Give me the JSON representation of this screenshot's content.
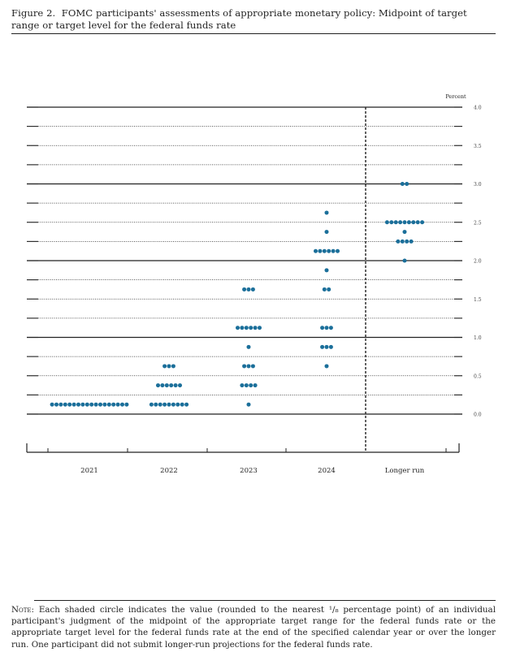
{
  "figure": {
    "caption_label": "Figure 2.",
    "caption_text": "FOMC participants' assessments of appropriate monetary policy: Midpoint of target range or target level for the federal funds rate"
  },
  "note": {
    "label": "Note:",
    "text": "Each shaded circle indicates the value (rounded to the nearest ¹/₈ percentage point) of an individual participant's judgment of the midpoint of the appropriate target range for the federal funds rate or the appropriate target level for the federal funds rate at the end of the specified calendar year or over the longer run. One participant did not submit longer-run projections for the federal funds rate."
  },
  "chart_data": {
    "type": "scatter",
    "ylabel": "Percent",
    "ylim": [
      0,
      4
    ],
    "yticks": [
      "0.0",
      "0.5",
      "1.0",
      "1.5",
      "2.0",
      "2.5",
      "3.0",
      "3.5",
      "4.0"
    ],
    "categories": [
      "2021",
      "2022",
      "2023",
      "2024",
      "Longer run"
    ],
    "separator_between": [
      "2024",
      "Longer run"
    ],
    "dot_color": "#1b6f9a",
    "dots": [
      {
        "x": "2021",
        "y": 0.125,
        "count": 18
      },
      {
        "x": "2022",
        "y": 0.125,
        "count": 9
      },
      {
        "x": "2022",
        "y": 0.375,
        "count": 6
      },
      {
        "x": "2022",
        "y": 0.625,
        "count": 3
      },
      {
        "x": "2023",
        "y": 0.125,
        "count": 1
      },
      {
        "x": "2023",
        "y": 0.375,
        "count": 4
      },
      {
        "x": "2023",
        "y": 0.625,
        "count": 3
      },
      {
        "x": "2023",
        "y": 0.875,
        "count": 1
      },
      {
        "x": "2023",
        "y": 1.125,
        "count": 6
      },
      {
        "x": "2023",
        "y": 1.625,
        "count": 3
      },
      {
        "x": "2024",
        "y": 0.625,
        "count": 1
      },
      {
        "x": "2024",
        "y": 0.875,
        "count": 3
      },
      {
        "x": "2024",
        "y": 1.125,
        "count": 3
      },
      {
        "x": "2024",
        "y": 1.625,
        "count": 2
      },
      {
        "x": "2024",
        "y": 1.875,
        "count": 1
      },
      {
        "x": "2024",
        "y": 2.125,
        "count": 6
      },
      {
        "x": "2024",
        "y": 2.375,
        "count": 1
      },
      {
        "x": "2024",
        "y": 2.625,
        "count": 1
      },
      {
        "x": "Longer run",
        "y": 2.0,
        "count": 1
      },
      {
        "x": "Longer run",
        "y": 2.25,
        "count": 4
      },
      {
        "x": "Longer run",
        "y": 2.375,
        "count": 1
      },
      {
        "x": "Longer run",
        "y": 2.5,
        "count": 9
      },
      {
        "x": "Longer run",
        "y": 3.0,
        "count": 2
      }
    ]
  }
}
